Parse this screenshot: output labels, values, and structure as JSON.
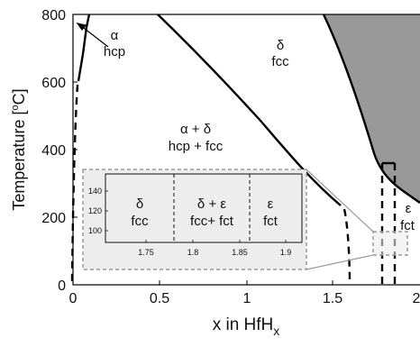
{
  "axes": {
    "xlabel_main": "x in HfH",
    "xlabel_sub": "x",
    "ylabel_prefix": "Temperature [",
    "ylabel_deg": "o",
    "ylabel_suffix": "C]",
    "xticks": [
      "0",
      "0.5",
      "1",
      "1.5",
      "2"
    ],
    "yticks": [
      "0",
      "200",
      "400",
      "600",
      "800"
    ],
    "xlim": [
      0,
      2
    ],
    "ylim": [
      0,
      800
    ]
  },
  "regions": {
    "alpha_symbol": "α",
    "alpha_phase": "hcp",
    "delta_symbol": "δ",
    "delta_phase": "fcc",
    "alpha_delta_symbol": "α + δ",
    "alpha_delta_phase": "hcp + fcc",
    "epsilon_symbol": "ε",
    "epsilon_phase": "fct"
  },
  "inset": {
    "yticks": [
      "140",
      "120",
      "100"
    ],
    "xticks": [
      "1.75",
      "1.8",
      "1.85",
      "1.9"
    ],
    "delta_symbol": "δ",
    "delta_phase": "fcc",
    "delta_eps_symbol": "δ + ε",
    "delta_eps_phase": "fcc+ fct",
    "eps_symbol": "ε",
    "eps_phase": "fct"
  },
  "colors": {
    "line": "#000000",
    "shaded_region": "#999999",
    "inset_bg": "#ededed",
    "inset_border": "#999999"
  }
}
